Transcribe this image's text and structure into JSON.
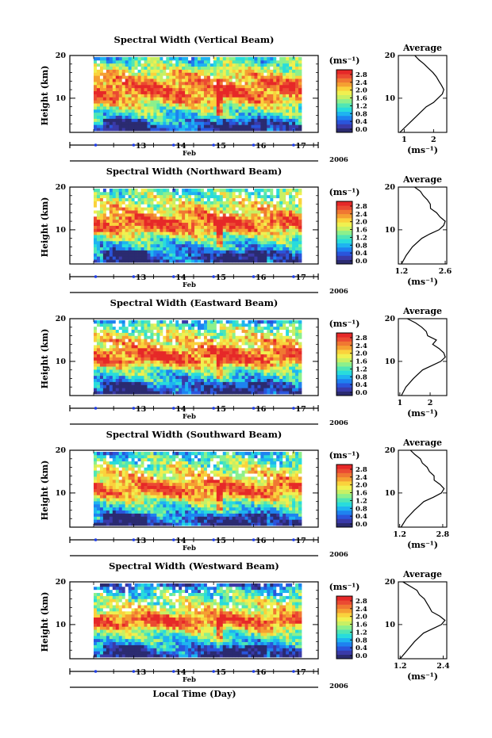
{
  "figure": {
    "xlabel": "Local Time (Day)",
    "month_label": "Feb",
    "year_label": "2006",
    "ylabel": "Height (km)"
  },
  "colorbar": {
    "unit": "(ms⁻¹)",
    "ticks": [
      "0.0",
      "0.4",
      "0.8",
      "1.2",
      "1.6",
      "2.0",
      "2.4",
      "2.8"
    ],
    "range": [
      0.0,
      3.0
    ],
    "colors": [
      "#2b2b70",
      "#3a3aa8",
      "#2a55dc",
      "#1e82f0",
      "#1eb4f0",
      "#28dcdc",
      "#50e6b4",
      "#8cf08c",
      "#c8f064",
      "#f0f050",
      "#fad23c",
      "#f5a032",
      "#f07832",
      "#eb4a32",
      "#e62828"
    ]
  },
  "chart_data": [
    {
      "type": "heatmap",
      "title": "Spectral Width (Vertical Beam)",
      "x_range": [
        12.0,
        17.4
      ],
      "x_ticks": [
        13,
        14,
        15,
        16,
        17
      ],
      "x_tick_labels": [
        "13",
        "14",
        "15",
        "16",
        "17"
      ],
      "y_range": [
        2,
        20
      ],
      "y_ticks": [
        10,
        20
      ],
      "y_tick_labels": [
        "10",
        "20"
      ],
      "zlim": [
        0.0,
        3.0
      ],
      "profile": {
        "title": "Average",
        "xlabel": "(ms⁻¹)",
        "x_range": [
          0.8,
          2.45
        ],
        "x_ticks": [
          1,
          2
        ],
        "x_tick_labels": [
          "1",
          "2"
        ],
        "height": [
          2,
          4,
          6,
          8,
          9,
          10,
          11,
          12,
          13,
          14,
          15,
          16,
          17,
          18,
          19,
          20
        ],
        "values": [
          0.85,
          1.15,
          1.45,
          1.75,
          2.0,
          2.15,
          2.3,
          2.35,
          2.3,
          2.2,
          2.1,
          1.95,
          1.8,
          1.65,
          1.5,
          1.35
        ]
      }
    },
    {
      "type": "heatmap",
      "title": "Spectral Width (Northward Beam)",
      "x_range": [
        12.0,
        17.4
      ],
      "x_ticks": [
        13,
        14,
        15,
        16,
        17
      ],
      "x_tick_labels": [
        "13",
        "14",
        "15",
        "16",
        "17"
      ],
      "y_range": [
        2,
        20
      ],
      "y_ticks": [
        10,
        20
      ],
      "y_tick_labels": [
        "10",
        "20"
      ],
      "zlim": [
        0.0,
        3.0
      ],
      "profile": {
        "title": "Average",
        "xlabel": "(ms⁻¹)",
        "x_range": [
          1.1,
          2.65
        ],
        "x_ticks": [
          1.2,
          2.6
        ],
        "x_tick_labels": [
          "1.2",
          "2.6"
        ],
        "height": [
          2,
          4,
          6,
          8,
          9,
          10,
          11,
          12,
          13,
          14,
          15,
          16,
          17,
          18,
          19,
          20
        ],
        "values": [
          1.2,
          1.35,
          1.55,
          1.85,
          2.1,
          2.4,
          2.55,
          2.6,
          2.45,
          2.3,
          2.15,
          2.1,
          2.05,
          1.9,
          1.8,
          1.65
        ]
      }
    },
    {
      "type": "heatmap",
      "title": "Spectral Width (Eastward Beam)",
      "x_range": [
        12.0,
        17.4
      ],
      "x_ticks": [
        13,
        14,
        15,
        16,
        17
      ],
      "x_tick_labels": [
        "13",
        "14",
        "15",
        "16",
        "17"
      ],
      "y_range": [
        2,
        20
      ],
      "y_ticks": [
        10,
        20
      ],
      "y_tick_labels": [
        "10",
        "20"
      ],
      "zlim": [
        0.0,
        3.0
      ],
      "profile": {
        "title": "Average",
        "xlabel": "(ms⁻¹)",
        "x_range": [
          0.95,
          2.55
        ],
        "x_ticks": [
          1,
          2
        ],
        "x_tick_labels": [
          "1",
          "2"
        ],
        "height": [
          2,
          4,
          6,
          8,
          9,
          10,
          11,
          12,
          13,
          14,
          15,
          16,
          17,
          18,
          19,
          20
        ],
        "values": [
          1.05,
          1.2,
          1.45,
          1.75,
          2.05,
          2.35,
          2.5,
          2.45,
          2.3,
          2.1,
          2.2,
          1.95,
          1.9,
          1.75,
          1.55,
          1.25
        ]
      }
    },
    {
      "type": "heatmap",
      "title": "Spectral Width (Southward Beam)",
      "x_range": [
        12.0,
        17.4
      ],
      "x_ticks": [
        13,
        14,
        15,
        16,
        17
      ],
      "x_tick_labels": [
        "13",
        "14",
        "15",
        "16",
        "17"
      ],
      "y_range": [
        2,
        20
      ],
      "y_ticks": [
        10,
        20
      ],
      "y_tick_labels": [
        "10",
        "20"
      ],
      "zlim": [
        0.0,
        3.0
      ],
      "profile": {
        "title": "Average",
        "xlabel": "(ms⁻¹)",
        "x_range": [
          1.15,
          2.95
        ],
        "x_ticks": [
          1.2,
          2.8
        ],
        "x_tick_labels": [
          "1.2",
          "2.8"
        ],
        "height": [
          2,
          4,
          6,
          8,
          9,
          10,
          11,
          12,
          13,
          14,
          15,
          16,
          17,
          18,
          19,
          20
        ],
        "values": [
          1.25,
          1.45,
          1.75,
          2.1,
          2.45,
          2.75,
          2.85,
          2.7,
          2.5,
          2.45,
          2.3,
          2.2,
          2.05,
          1.95,
          1.8,
          1.6
        ]
      }
    },
    {
      "type": "heatmap",
      "title": "Spectral Width (Westward Beam)",
      "x_range": [
        12.0,
        17.4
      ],
      "x_ticks": [
        13,
        14,
        15,
        16,
        17
      ],
      "x_tick_labels": [
        "13",
        "14",
        "15",
        "16",
        "17"
      ],
      "y_range": [
        2,
        20
      ],
      "y_ticks": [
        10,
        20
      ],
      "y_tick_labels": [
        "10",
        "20"
      ],
      "zlim": [
        0.0,
        3.0
      ],
      "profile": {
        "title": "Average",
        "xlabel": "(ms⁻¹)",
        "x_range": [
          1.15,
          2.5
        ],
        "x_ticks": [
          1.2,
          2.4
        ],
        "x_tick_labels": [
          "1.2",
          "2.4"
        ],
        "height": [
          2,
          4,
          6,
          8,
          9,
          10,
          11,
          12,
          13,
          14,
          15,
          16,
          17,
          18,
          19,
          20
        ],
        "values": [
          1.2,
          1.4,
          1.6,
          1.85,
          2.1,
          2.35,
          2.45,
          2.3,
          2.1,
          2.0,
          1.95,
          1.85,
          1.75,
          1.65,
          1.45,
          1.3
        ]
      }
    }
  ]
}
